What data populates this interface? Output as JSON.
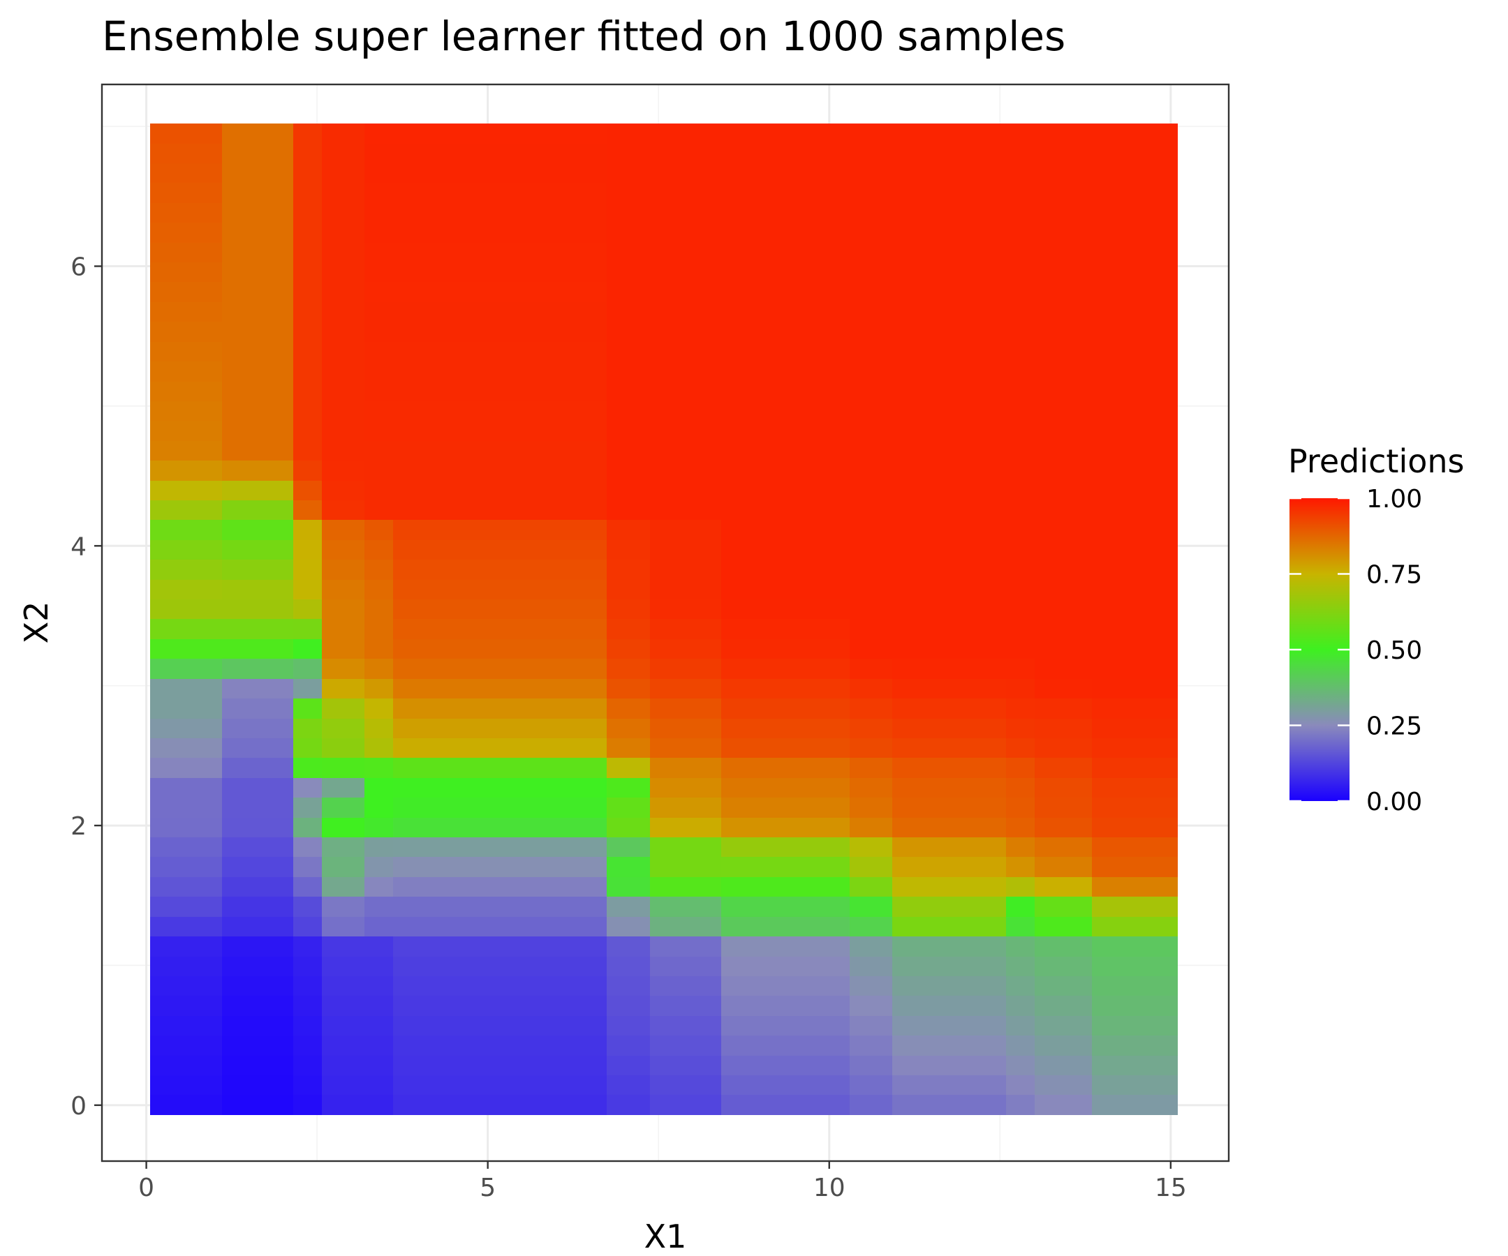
{
  "chart_data": {
    "type": "heatmap",
    "title": "Ensemble super learner fitted on 1000 samples",
    "xlabel": "X1",
    "ylabel": "X2",
    "xlim": [
      -0.65,
      15.85
    ],
    "ylim": [
      -0.4,
      7.3
    ],
    "x_ticks": [
      0,
      5,
      10,
      15
    ],
    "x_tick_labels": [
      "0",
      "5",
      "10",
      "15"
    ],
    "y_ticks": [
      0,
      2,
      4,
      6
    ],
    "y_tick_labels": [
      "0",
      "2",
      "4",
      "6"
    ],
    "grid": true,
    "x_range": [
      0.06,
      15.1
    ],
    "y_range": [
      -0.07,
      7.02
    ],
    "x_cells": 72,
    "y_cells": 50,
    "x_breaks": [
      1.2,
      2.2,
      2.6,
      3.2,
      3.7,
      6.7,
      7.3,
      8.4,
      10.3,
      11.0,
      12.6,
      13.0,
      13.9
    ],
    "row_contours": [
      {
        "y": 7.02,
        "f": [
          0.91,
          0.86,
          0.95,
          0.97,
          0.98,
          0.98,
          0.98,
          0.98,
          0.98,
          0.98,
          0.98,
          0.98,
          0.98,
          0.98
        ]
      },
      {
        "y": 4.6,
        "f": [
          0.83,
          0.86,
          0.95,
          0.97,
          0.97,
          0.97,
          0.98,
          0.98,
          0.98,
          0.98,
          0.98,
          0.98,
          0.98,
          0.98
        ]
      },
      {
        "y": 4.25,
        "f": [
          0.67,
          0.62,
          0.88,
          0.96,
          0.97,
          0.97,
          0.98,
          0.98,
          0.98,
          0.98,
          0.98,
          0.98,
          0.98,
          0.98
        ]
      },
      {
        "y": 4.15,
        "f": [
          0.58,
          0.55,
          0.76,
          0.88,
          0.9,
          0.93,
          0.96,
          0.97,
          0.98,
          0.98,
          0.98,
          0.98,
          0.98,
          0.98
        ]
      },
      {
        "y": 3.6,
        "f": [
          0.7,
          0.7,
          0.74,
          0.84,
          0.86,
          0.9,
          0.95,
          0.97,
          0.98,
          0.98,
          0.98,
          0.98,
          0.98,
          0.98
        ]
      },
      {
        "y": 3.2,
        "f": [
          0.5,
          0.5,
          0.46,
          0.84,
          0.86,
          0.88,
          0.93,
          0.95,
          0.97,
          0.98,
          0.98,
          0.98,
          0.98,
          0.98
        ]
      },
      {
        "y": 3.0,
        "f": [
          0.3,
          0.24,
          0.26,
          0.78,
          0.8,
          0.85,
          0.91,
          0.93,
          0.95,
          0.96,
          0.97,
          0.97,
          0.98,
          0.98
        ]
      },
      {
        "y": 2.8,
        "f": [
          0.3,
          0.22,
          0.62,
          0.66,
          0.73,
          0.8,
          0.87,
          0.9,
          0.93,
          0.94,
          0.95,
          0.96,
          0.96,
          0.97
        ]
      },
      {
        "y": 2.55,
        "f": [
          0.26,
          0.2,
          0.6,
          0.64,
          0.7,
          0.76,
          0.84,
          0.88,
          0.91,
          0.92,
          0.93,
          0.94,
          0.95,
          0.96
        ]
      },
      {
        "y": 2.4,
        "f": [
          0.24,
          0.18,
          0.52,
          0.52,
          0.52,
          0.54,
          0.72,
          0.83,
          0.86,
          0.88,
          0.9,
          0.91,
          0.93,
          0.95
        ]
      },
      {
        "y": 2.3,
        "f": [
          0.2,
          0.16,
          0.24,
          0.3,
          0.5,
          0.5,
          0.52,
          0.82,
          0.85,
          0.87,
          0.89,
          0.9,
          0.92,
          0.94
        ]
      },
      {
        "y": 2.0,
        "f": [
          0.2,
          0.16,
          0.36,
          0.52,
          0.5,
          0.48,
          0.6,
          0.78,
          0.82,
          0.85,
          0.88,
          0.89,
          0.91,
          0.93
        ]
      },
      {
        "y": 1.85,
        "f": [
          0.18,
          0.14,
          0.24,
          0.34,
          0.3,
          0.3,
          0.4,
          0.6,
          0.66,
          0.72,
          0.8,
          0.84,
          0.86,
          0.9
        ]
      },
      {
        "y": 1.6,
        "f": [
          0.16,
          0.12,
          0.2,
          0.36,
          0.26,
          0.24,
          0.52,
          0.6,
          0.56,
          0.66,
          0.76,
          0.78,
          0.82,
          0.88
        ]
      },
      {
        "y": 1.45,
        "f": [
          0.14,
          0.1,
          0.14,
          0.22,
          0.2,
          0.2,
          0.3,
          0.38,
          0.44,
          0.48,
          0.66,
          0.5,
          0.58,
          0.7
        ]
      },
      {
        "y": 1.25,
        "f": [
          0.1,
          0.08,
          0.12,
          0.2,
          0.18,
          0.18,
          0.26,
          0.34,
          0.4,
          0.42,
          0.6,
          0.46,
          0.52,
          0.62
        ]
      },
      {
        "y": 1.15,
        "f": [
          0.06,
          0.04,
          0.06,
          0.1,
          0.1,
          0.12,
          0.16,
          0.2,
          0.26,
          0.3,
          0.34,
          0.36,
          0.38,
          0.4
        ]
      },
      {
        "y": 0.6,
        "f": [
          0.04,
          0.02,
          0.04,
          0.08,
          0.08,
          0.1,
          0.14,
          0.16,
          0.22,
          0.24,
          0.28,
          0.3,
          0.32,
          0.36
        ]
      },
      {
        "y": -0.07,
        "f": [
          0.02,
          0.01,
          0.02,
          0.06,
          0.06,
          0.08,
          0.1,
          0.12,
          0.16,
          0.18,
          0.2,
          0.22,
          0.24,
          0.28
        ]
      }
    ],
    "color_scale": {
      "stops": [
        0,
        0.25,
        0.5,
        0.75,
        1
      ],
      "colors": [
        "#1a00ff",
        "#8a8abc",
        "#3ef020",
        "#c8b400",
        "#ff1800"
      ]
    },
    "legend": {
      "title": "Predictions",
      "position": "right",
      "breaks": [
        0,
        0.25,
        0.5,
        0.75,
        1
      ],
      "labels": [
        "0.00",
        "0.25",
        "0.50",
        "0.75",
        "1.00"
      ]
    }
  }
}
